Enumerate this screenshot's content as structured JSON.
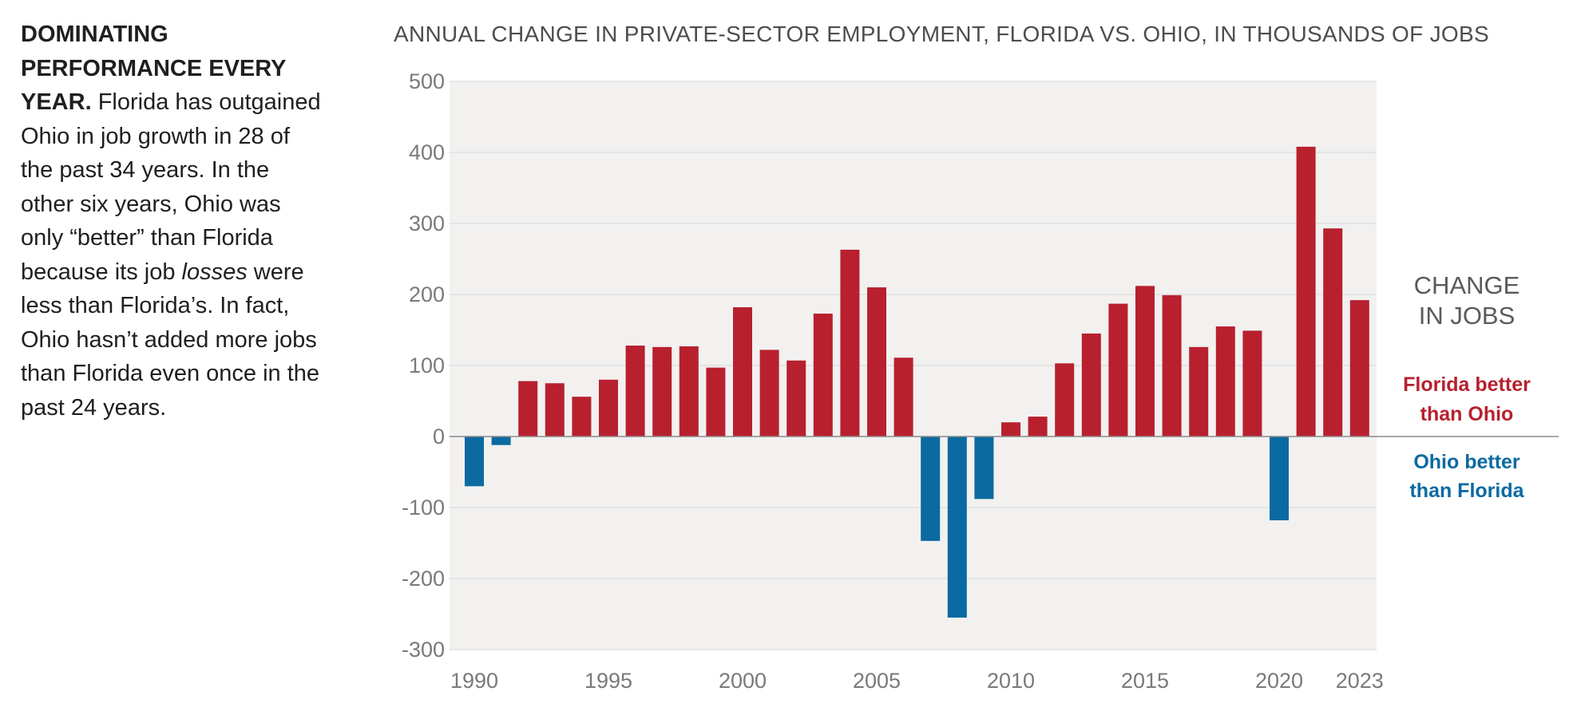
{
  "sidebar": {
    "heading": "DOMINATING PERFORMANCE EVERY YEAR.",
    "text_1": " Florida has outgained Ohio in job growth in 28 of the past 34 years. In the other six years, Ohio was only “better” than Florida because its job ",
    "text_em": "losses",
    "text_2": " were less than Florida’s. In fact, Ohio hasn’t added more jobs than Florida even once in the past 24 years."
  },
  "legend": {
    "heading_line1": "CHANGE",
    "heading_line2": "IN JOBS",
    "florida_line1": "Florida better",
    "florida_line2": "than Ohio",
    "ohio_line1": "Ohio better",
    "ohio_line2": "than Florida"
  },
  "colors": {
    "florida": "#b8202e",
    "ohio": "#0a6aa1",
    "plot_bg": "#f2f1f0",
    "grid": "#dcdcdc"
  },
  "chart_data": {
    "type": "bar",
    "title": "ANNUAL CHANGE IN PRIVATE-SECTOR EMPLOYMENT, FLORIDA VS. OHIO, IN THOUSANDS OF JOBS",
    "xlabel": "",
    "ylabel": "",
    "ylim": [
      -300,
      500
    ],
    "yticks": [
      500,
      400,
      300,
      200,
      100,
      0,
      -100,
      -200,
      -300
    ],
    "xticks": [
      1990,
      1995,
      2000,
      2005,
      2010,
      2015,
      2020,
      2023
    ],
    "grid": true,
    "categories": [
      1990,
      1991,
      1992,
      1993,
      1994,
      1995,
      1996,
      1997,
      1998,
      1999,
      2000,
      2001,
      2002,
      2003,
      2004,
      2005,
      2006,
      2007,
      2008,
      2009,
      2010,
      2011,
      2012,
      2013,
      2014,
      2015,
      2016,
      2017,
      2018,
      2019,
      2020,
      2021,
      2022,
      2023
    ],
    "values": [
      -70,
      -12,
      78,
      75,
      56,
      80,
      128,
      126,
      127,
      97,
      182,
      122,
      107,
      173,
      263,
      210,
      111,
      -147,
      -255,
      -88,
      20,
      28,
      103,
      145,
      187,
      212,
      199,
      126,
      155,
      149,
      -118,
      408,
      293,
      192
    ]
  }
}
